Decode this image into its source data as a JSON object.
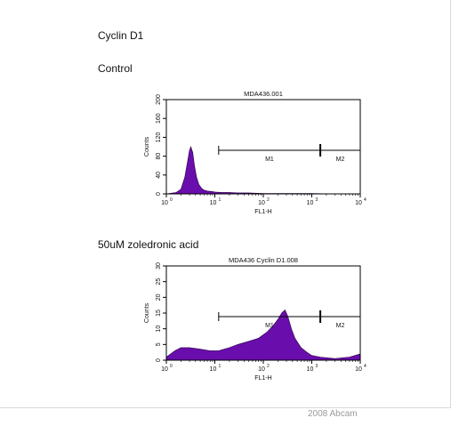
{
  "header": {
    "title": "Cyclin D1",
    "credit": "2008 Abcam"
  },
  "chart_data": [
    {
      "type": "area",
      "section_label": "Control",
      "title": "MDA436.001",
      "xlabel": "FL1-H",
      "ylabel": "Counts",
      "xscale": "log",
      "xlim": [
        1,
        10000
      ],
      "ylim": [
        0,
        200
      ],
      "x_ticks": [
        "10^0",
        "10^1",
        "10^2",
        "10^3",
        "10^4"
      ],
      "y_ticks": [
        "0",
        "40",
        "80",
        "120",
        "160",
        "200"
      ],
      "fill_color": "#6a0dad",
      "markers": [
        {
          "name": "M1",
          "range": [
            12,
            1500
          ]
        },
        {
          "name": "M2",
          "range": [
            1500,
            10000
          ]
        }
      ],
      "series": [
        {
          "x": [
            1,
            1.6,
            2.0,
            2.4,
            2.7,
            3.0,
            3.2,
            3.5,
            3.8,
            4.2,
            4.7,
            5.3,
            6.0,
            7.0,
            8.5,
            10,
            14,
            20,
            30,
            50,
            100,
            300,
            1000,
            3000,
            10000
          ],
          "values": [
            0,
            3,
            10,
            35,
            65,
            92,
            100,
            88,
            60,
            35,
            20,
            12,
            8,
            6,
            5,
            4,
            3,
            3,
            2,
            2,
            1,
            1,
            1,
            0,
            0
          ]
        }
      ]
    },
    {
      "type": "area",
      "section_label": "50uM zoledronic acid",
      "title": "MDA436 Cyclin D1.008",
      "xlabel": "FL1-H",
      "ylabel": "Counts",
      "xscale": "log",
      "xlim": [
        1,
        10000
      ],
      "ylim": [
        0,
        30
      ],
      "x_ticks": [
        "10^0",
        "10^1",
        "10^2",
        "10^3",
        "10^4"
      ],
      "y_ticks": [
        "0",
        "5",
        "10",
        "15",
        "20",
        "25",
        "30"
      ],
      "fill_color": "#6a0dad",
      "markers": [
        {
          "name": "M1",
          "range": [
            12,
            1500
          ]
        },
        {
          "name": "M2",
          "range": [
            1500,
            10000
          ]
        }
      ],
      "series": [
        {
          "x": [
            1,
            1.5,
            2,
            3,
            5,
            8,
            12,
            20,
            30,
            50,
            80,
            120,
            160,
            200,
            240,
            280,
            320,
            380,
            450,
            600,
            800,
            1000,
            1500,
            3000,
            6000,
            10000
          ],
          "values": [
            1,
            3,
            4,
            4,
            3.5,
            3,
            3,
            4,
            5,
            6,
            7,
            9,
            11,
            13,
            15,
            16,
            14,
            10,
            7,
            4,
            2.5,
            1.5,
            1,
            0.5,
            1,
            2
          ]
        }
      ]
    }
  ]
}
